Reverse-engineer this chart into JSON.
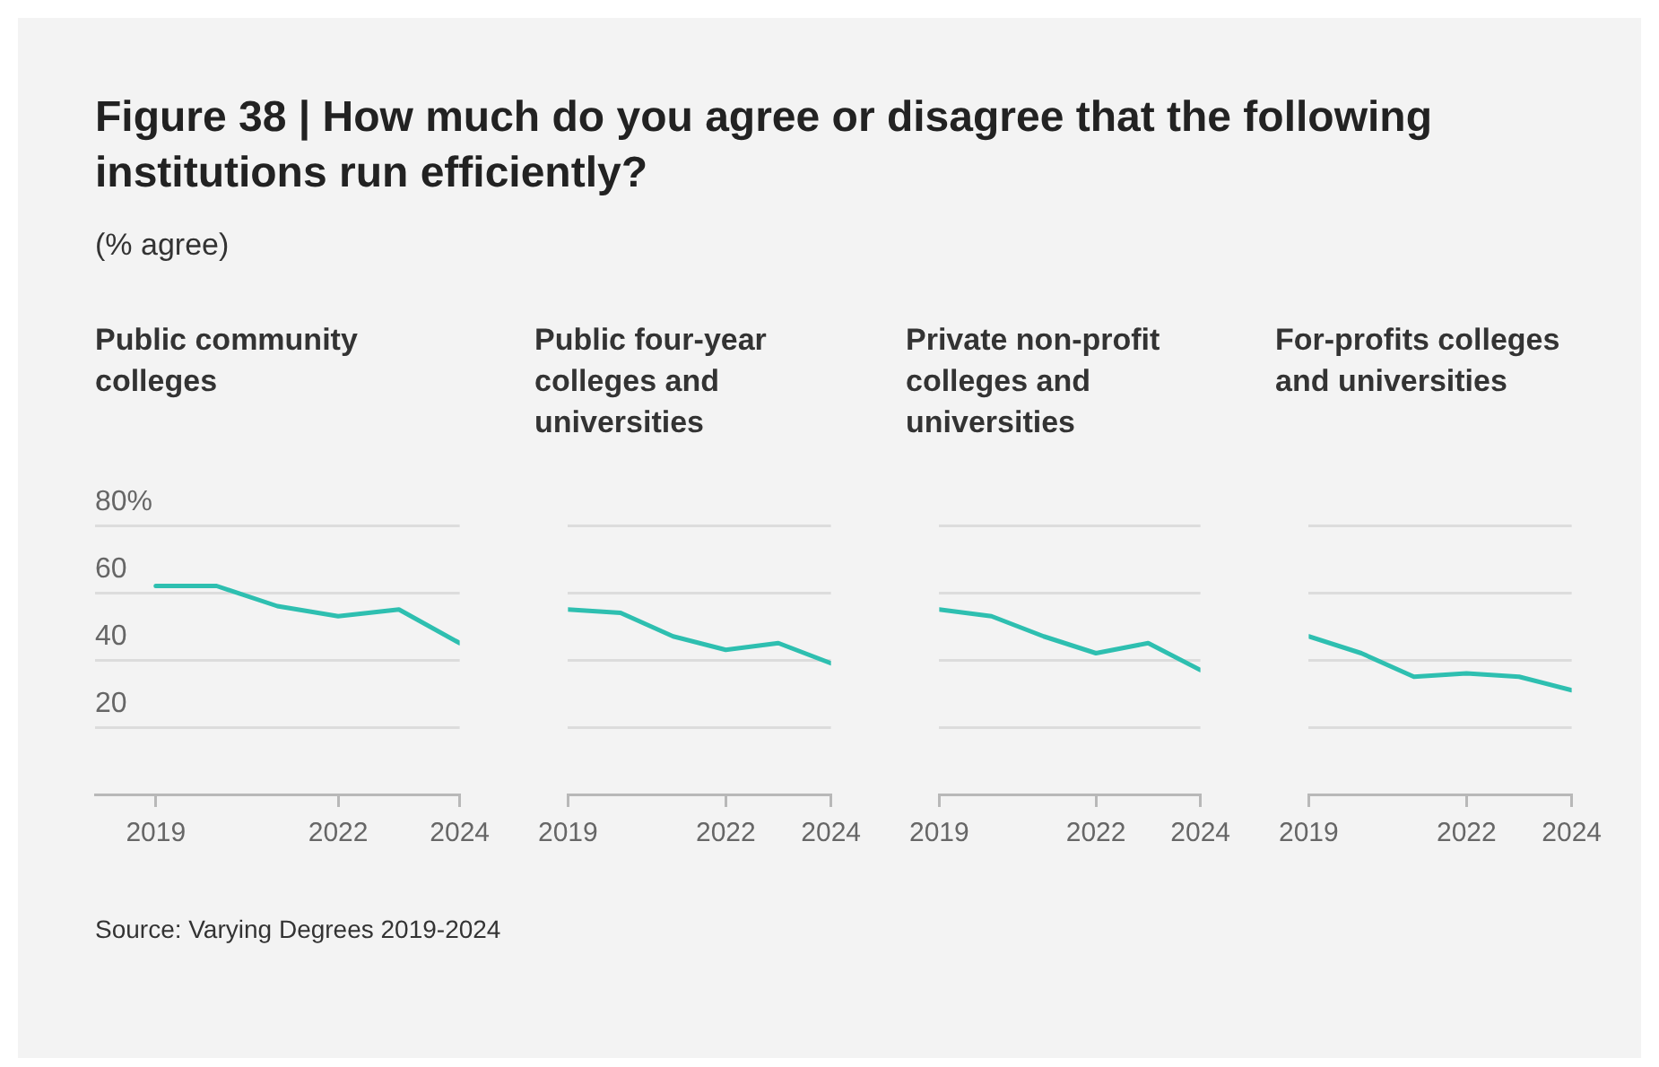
{
  "chart_data": [
    {
      "type": "other",
      "title": "Figure 38 | How much do you agree or disagree that the following institutions run efficiently?",
      "subtitle": "(% agree)",
      "annotations": [
        "Source: Varying Degrees 2019-2024"
      ]
    },
    {
      "type": "line",
      "title": "Public community colleges",
      "x": [
        2019,
        2020,
        2021,
        2022,
        2023,
        2024
      ],
      "xlim": [
        2018,
        2024
      ],
      "xticks": [
        2019,
        2022,
        2024
      ],
      "ylim": [
        0,
        80
      ],
      "yticks": [
        20,
        40,
        60,
        {
          "value": 80,
          "label": "80%"
        }
      ],
      "grid": "y",
      "marker": "none",
      "line_style": "solid",
      "series": [
        {
          "color": "#2ebfb0",
          "values": [
            62,
            62,
            56,
            53,
            55,
            45
          ]
        }
      ]
    },
    {
      "type": "line",
      "title": "Public four-year colleges and universities",
      "x": [
        2019,
        2020,
        2021,
        2022,
        2023,
        2024
      ],
      "xlim": [
        2019,
        2024
      ],
      "xticks": [
        2019,
        2022,
        2024
      ],
      "ylim": [
        0,
        80
      ],
      "yticks": [
        20,
        40,
        60,
        80
      ],
      "grid": "y",
      "marker": "none",
      "line_style": "solid",
      "tick_labels": "x",
      "series": [
        {
          "color": "#2ebfb0",
          "values": [
            55,
            54,
            47,
            43,
            45,
            39
          ]
        }
      ]
    },
    {
      "type": "line",
      "title": "Private non-profit colleges and universities",
      "x": [
        2019,
        2020,
        2021,
        2022,
        2023,
        2024
      ],
      "xlim": [
        2019,
        2024
      ],
      "xticks": [
        2019,
        2022,
        2024
      ],
      "ylim": [
        0,
        80
      ],
      "yticks": [
        20,
        40,
        60,
        80
      ],
      "grid": "y",
      "marker": "none",
      "line_style": "solid",
      "tick_labels": "x",
      "series": [
        {
          "color": "#2ebfb0",
          "values": [
            55,
            53,
            47,
            42,
            45,
            37
          ]
        }
      ]
    },
    {
      "type": "line",
      "title": "For-profits colleges and universities",
      "x": [
        2019,
        2020,
        2021,
        2022,
        2023,
        2024
      ],
      "xlim": [
        2019,
        2024
      ],
      "xticks": [
        2019,
        2022,
        2024
      ],
      "ylim": [
        0,
        80
      ],
      "yticks": [
        20,
        40,
        60,
        80
      ],
      "grid": "y",
      "marker": "none",
      "line_style": "solid",
      "tick_labels": "x",
      "series": [
        {
          "color": "#2ebfb0",
          "values": [
            47,
            42,
            35,
            36,
            35,
            31
          ]
        }
      ]
    }
  ]
}
